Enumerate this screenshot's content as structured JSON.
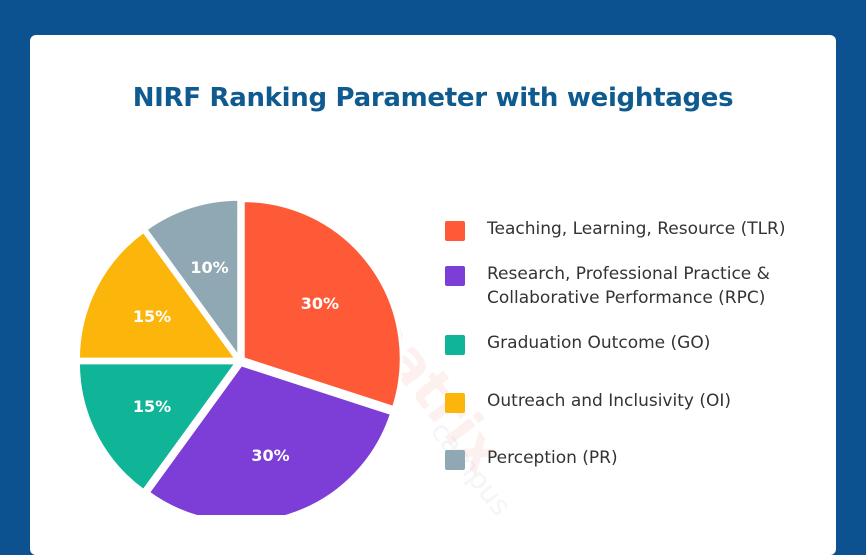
{
  "chart_data": {
    "type": "pie",
    "title": "NIRF Ranking Parameter with weightages",
    "categories": [
      "Teaching, Learning, Resource (TLR)",
      "Research, Professional Practice & Collaborative Performance (RPC)",
      "Graduation Outcome (GO)",
      "Outreach and Inclusivity (OI)",
      "Perception (PR)"
    ],
    "values": [
      30,
      30,
      15,
      15,
      10
    ],
    "data_labels": [
      "30%",
      "30%",
      "15%",
      "15%",
      "10%"
    ],
    "colors": [
      "#fe5a37",
      "#7c3ed7",
      "#0fb596",
      "#fcb50b",
      "#8fa8b3"
    ],
    "legend_position": "right"
  },
  "watermark": {
    "brand": "Creatrix",
    "sub": "campus"
  }
}
